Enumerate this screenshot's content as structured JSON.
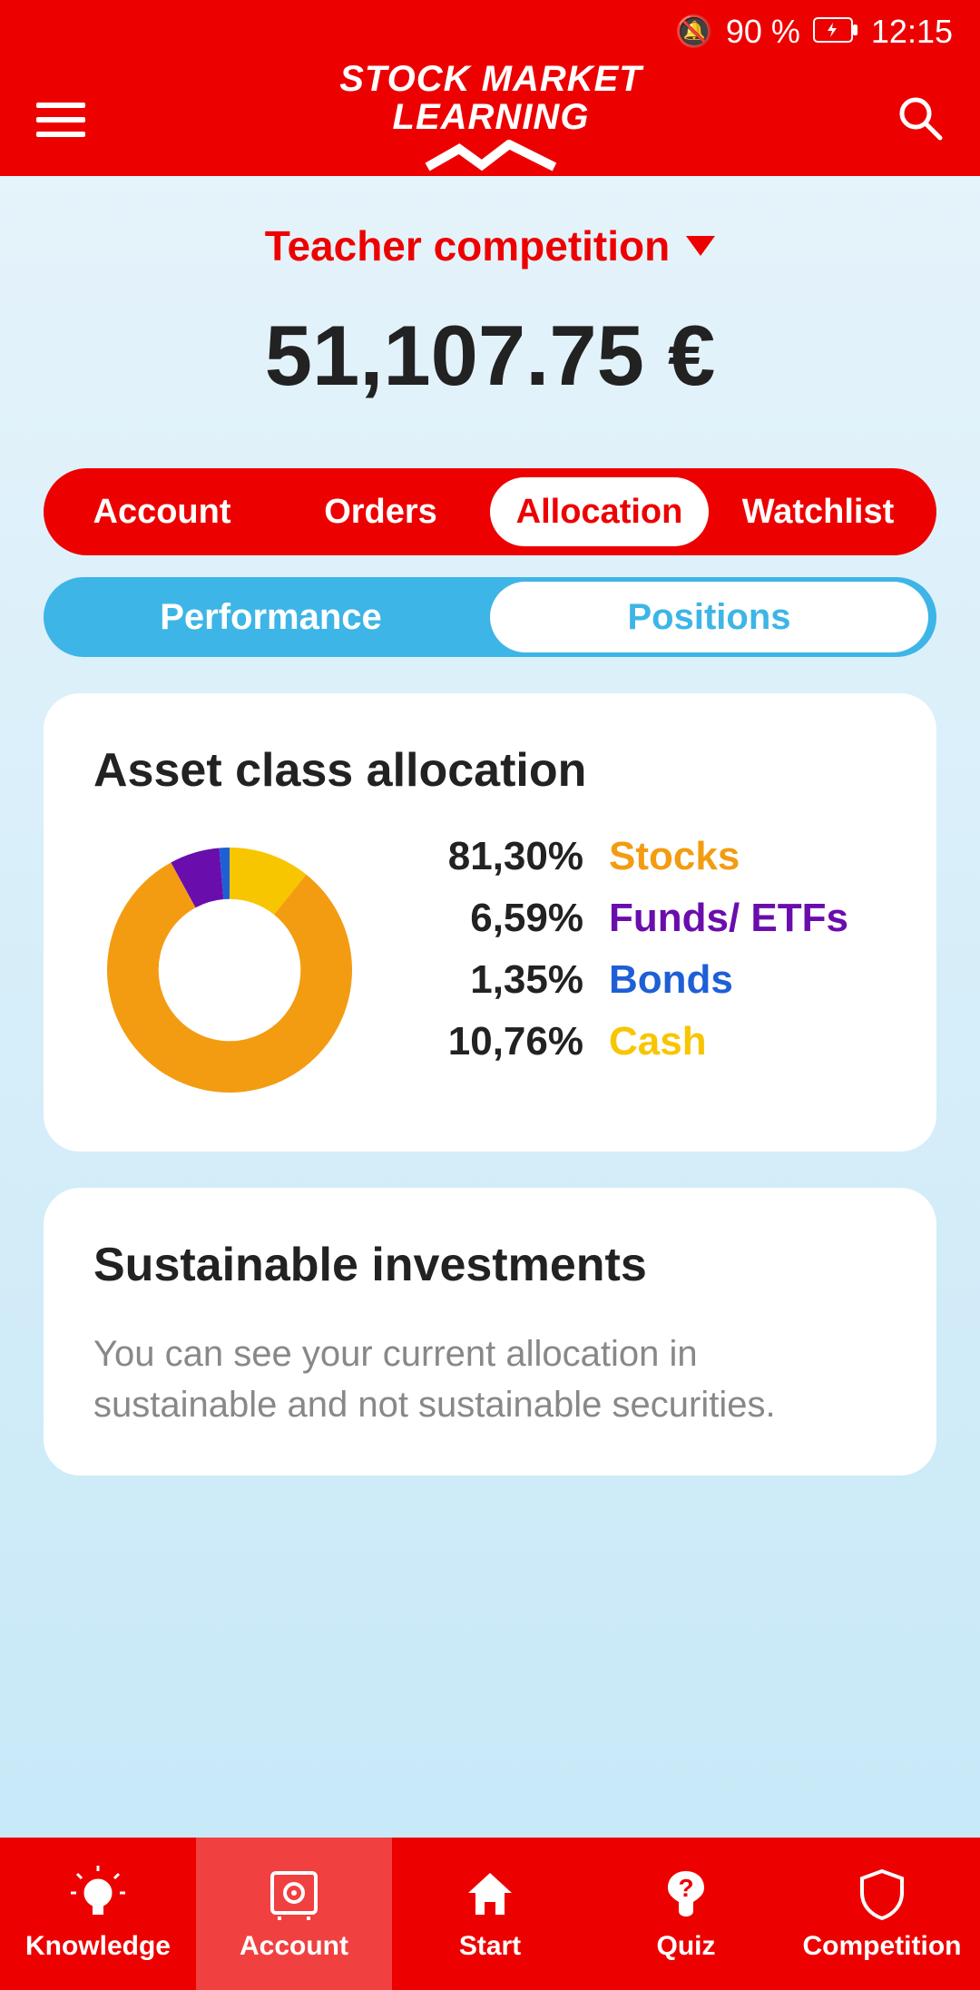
{
  "status": {
    "battery": "90 %",
    "time": "12:15"
  },
  "app": {
    "title_line1": "STOCK MARKET",
    "title_line2": "LEARNING"
  },
  "competition": {
    "label": "Teacher competition"
  },
  "balance": "51,107.75 €",
  "tabs_primary": {
    "account": "Account",
    "orders": "Orders",
    "allocation": "Allocation",
    "watchlist": "Watchlist",
    "active": "allocation"
  },
  "tabs_secondary": {
    "performance": "Performance",
    "positions": "Positions",
    "active": "positions"
  },
  "allocation_card": {
    "title": "Asset class allocation",
    "donut": {
      "type": "donut",
      "inner_radius_ratio": 0.58,
      "background": "#ffffff",
      "slices": [
        {
          "label": "Stocks",
          "value": 81.3,
          "pct_text": "81,30%",
          "color": "#f39c12"
        },
        {
          "label": "Funds/ ETFs",
          "value": 6.59,
          "pct_text": "6,59%",
          "color": "#6a0dad"
        },
        {
          "label": "Bonds",
          "value": 1.35,
          "pct_text": "1,35%",
          "color": "#1e5fd6"
        },
        {
          "label": "Cash",
          "value": 10.76,
          "pct_text": "10,76%",
          "color": "#f7c600"
        }
      ],
      "legend_label_colors": {
        "Stocks": "#f39c12",
        "Funds/ ETFs": "#6a0dad",
        "Bonds": "#1e5fd6",
        "Cash": "#f7c600"
      }
    }
  },
  "sustainable_card": {
    "title": "Sustainable investments",
    "desc": "You can see your current allocation in sustainable and not sustainable securities."
  },
  "nav": {
    "knowledge": "Knowledge",
    "account": "Account",
    "start": "Start",
    "quiz": "Quiz",
    "competition": "Competition",
    "active": "account"
  }
}
